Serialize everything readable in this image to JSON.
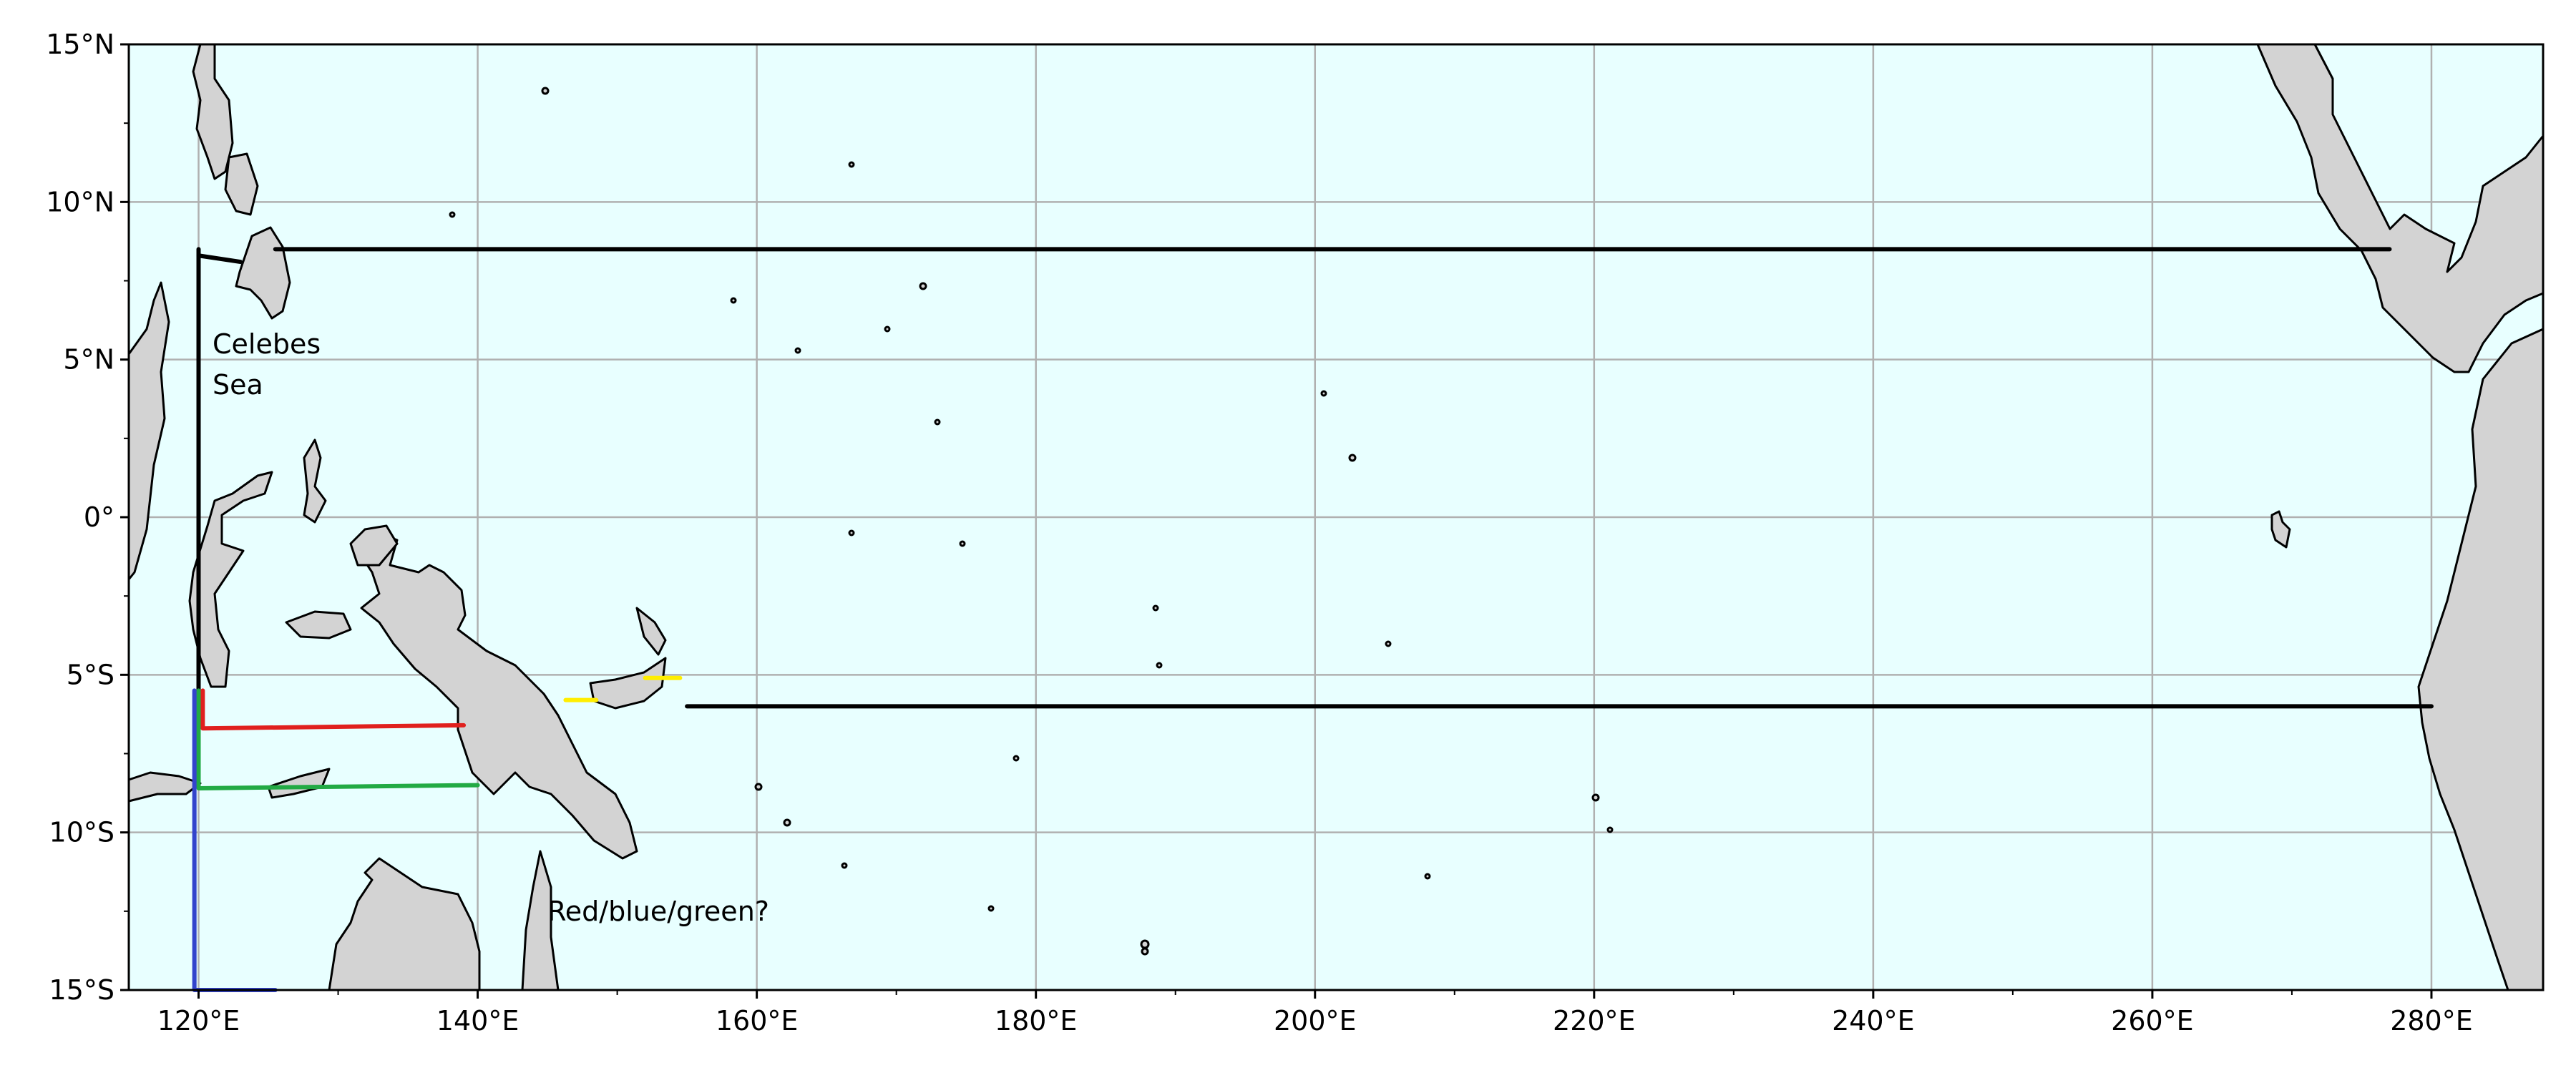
{
  "map": {
    "lon_range": [
      115,
      288
    ],
    "lat_range": [
      -15,
      15
    ],
    "ocean_color": "#e8ffff",
    "land_color": "#d3d3d3",
    "x_ticks": [
      {
        "lon": 120,
        "label": "120°E"
      },
      {
        "lon": 140,
        "label": "140°E"
      },
      {
        "lon": 160,
        "label": "160°E"
      },
      {
        "lon": 180,
        "label": "180°E"
      },
      {
        "lon": 200,
        "label": "200°E"
      },
      {
        "lon": 220,
        "label": "220°E"
      },
      {
        "lon": 240,
        "label": "240°E"
      },
      {
        "lon": 260,
        "label": "260°E"
      },
      {
        "lon": 280,
        "label": "280°E"
      }
    ],
    "y_ticks": [
      {
        "lat": 15,
        "label": "15°N"
      },
      {
        "lat": 10,
        "label": "10°N"
      },
      {
        "lat": 5,
        "label": "5°N"
      },
      {
        "lat": 0,
        "label": "0°"
      },
      {
        "lat": -5,
        "label": "5°S"
      },
      {
        "lat": -10,
        "label": "10°S"
      },
      {
        "lat": -15,
        "label": "15°S"
      }
    ],
    "annotations": [
      {
        "id": "celebes-1",
        "text": "Celebes",
        "lon": 121,
        "lat": 5.2
      },
      {
        "id": "celebes-2",
        "text": "Sea",
        "lon": 121,
        "lat": 3.9
      },
      {
        "id": "question",
        "text": "Red/blue/green?",
        "lon": 145,
        "lat": -12.8
      }
    ],
    "sections": [
      {
        "name": "north",
        "color": "#000000",
        "points": [
          [
            120,
            8.5
          ],
          [
            120,
            -5.5
          ]
        ]
      },
      {
        "name": "north-hook",
        "color": "#000000",
        "points": [
          [
            120,
            8.3
          ],
          [
            123,
            8.1
          ]
        ]
      },
      {
        "name": "north-line",
        "color": "#000000",
        "points": [
          [
            125.5,
            8.5
          ],
          [
            277,
            8.5
          ]
        ]
      },
      {
        "name": "south-line",
        "color": "#000000",
        "points": [
          [
            155,
            -6
          ],
          [
            280,
            -6
          ]
        ]
      },
      {
        "name": "red",
        "color": "#e0201e",
        "points": [
          [
            120.3,
            -5.5
          ],
          [
            120.3,
            -6.7
          ],
          [
            139,
            -6.6
          ]
        ]
      },
      {
        "name": "green",
        "color": "#22aa44",
        "points": [
          [
            120,
            -5.5
          ],
          [
            120,
            -8.6
          ],
          [
            140,
            -8.5
          ]
        ]
      },
      {
        "name": "blue",
        "color": "#3344cc",
        "points": [
          [
            119.7,
            -5.5
          ],
          [
            119.7,
            -15
          ],
          [
            125.5,
            -15
          ]
        ]
      },
      {
        "name": "yellow-1",
        "color": "#ffee00",
        "points": [
          [
            146.3,
            -5.8
          ],
          [
            148.5,
            -5.8
          ]
        ]
      },
      {
        "name": "yellow-2",
        "color": "#ffee00",
        "points": [
          [
            152,
            -5.1
          ],
          [
            154.5,
            -5.1
          ]
        ]
      }
    ]
  }
}
